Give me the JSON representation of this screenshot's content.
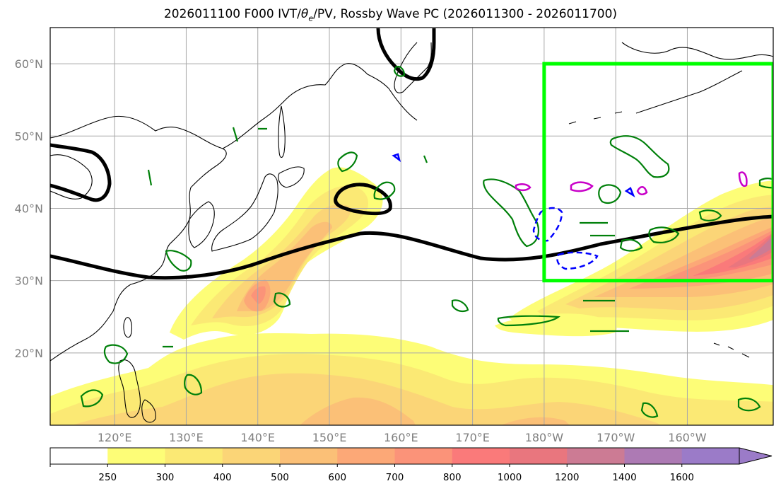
{
  "title": {
    "prefix": "2026011100 F000 IVT/",
    "theta": "θ",
    "theta_sub": "e",
    "suffix": "/PV, Rossby Wave PC (2026011300 - 2026011700)"
  },
  "map": {
    "lon_range": [
      111,
      212
    ],
    "lat_range": [
      10,
      65
    ],
    "lat_ticks": [
      {
        "lat": 60,
        "label": "60°N"
      },
      {
        "lat": 50,
        "label": "50°N"
      },
      {
        "lat": 40,
        "label": "40°N"
      },
      {
        "lat": 30,
        "label": "30°N"
      },
      {
        "lat": 20,
        "label": "20°N"
      }
    ],
    "lon_ticks": [
      {
        "lon": 120,
        "label": "120°E"
      },
      {
        "lon": 130,
        "label": "130°E"
      },
      {
        "lon": 140,
        "label": "140°E"
      },
      {
        "lon": 150,
        "label": "150°E"
      },
      {
        "lon": 160,
        "label": "160°E"
      },
      {
        "lon": 170,
        "label": "170°E"
      },
      {
        "lon": 180,
        "label": "180°W"
      },
      {
        "lon": 190,
        "label": "170°W"
      },
      {
        "lon": 200,
        "label": "160°W"
      }
    ],
    "gridlines": true,
    "highlight_box": {
      "lon": [
        180,
        212
      ],
      "lat": [
        30,
        60
      ],
      "color": "#00ff00"
    }
  },
  "colorbar": {
    "levels": [
      "250",
      "300",
      "400",
      "500",
      "600",
      "700",
      "800",
      "1000",
      "1200",
      "1400",
      "1600"
    ],
    "colors": [
      "#ffffff",
      "#fdfd77",
      "#fbe974",
      "#fbd577",
      "#fbc077",
      "#fca877",
      "#fb9379",
      "#fa7a7a",
      "#e9767e",
      "#cc7b94",
      "#ad7ab4",
      "#9b7bc8"
    ],
    "extend": "max"
  },
  "colors": {
    "contour_black": "#000000",
    "contour_green": "#00800a",
    "contour_blue": "#0000ff",
    "contour_magenta": "#c800c8",
    "coast": "#000000"
  }
}
